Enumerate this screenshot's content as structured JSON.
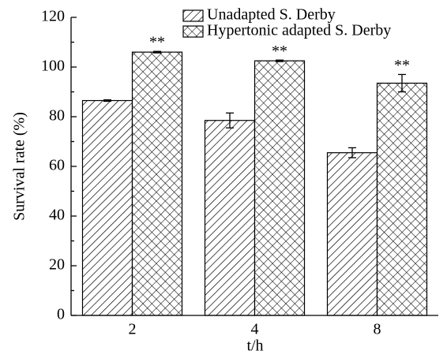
{
  "chart_data": {
    "type": "bar",
    "x_label": "t/h",
    "y_label": "Survival rate (%)",
    "categories": [
      "2",
      "4",
      "8"
    ],
    "series": [
      {
        "name": "Unadapted S. Derby",
        "color": "#000000",
        "hatch": "diagonal",
        "values": [
          86.5,
          78.5,
          65.5
        ],
        "errors": [
          0.3,
          3,
          2
        ]
      },
      {
        "name": "Hypertonic adapted S. Derby",
        "color": "#000000",
        "hatch": "cross",
        "values": [
          106,
          102.5,
          93.5
        ],
        "errors": [
          0.3,
          0.3,
          3.5
        ],
        "significance": [
          "**",
          "**",
          "**"
        ]
      }
    ],
    "ylim": [
      0,
      120
    ],
    "yticks": [
      0,
      20,
      40,
      60,
      80,
      100,
      120
    ],
    "legend": "upper right"
  }
}
